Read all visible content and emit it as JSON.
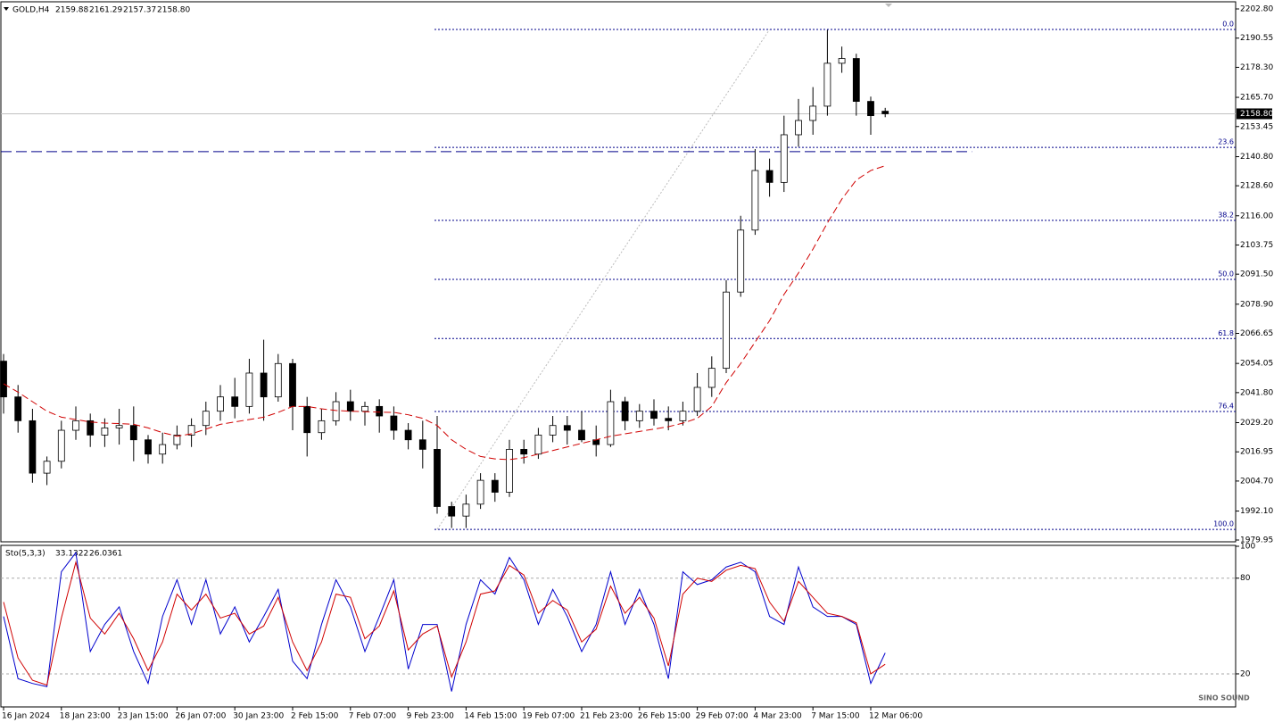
{
  "chart_data": {
    "type": "candlestick",
    "symbol": "GOLD,H4",
    "last_value_labels": [
      "2159.88",
      "2161.29",
      "2157.37",
      "2158.80"
    ],
    "categories": [
      "16 Jan 2024",
      null,
      null,
      null,
      "18 Jan 23:00",
      null,
      null,
      null,
      "23 Jan 15:00",
      null,
      null,
      null,
      "26 Jan 07:00",
      null,
      null,
      null,
      "30 Jan 23:00",
      null,
      null,
      null,
      "2 Feb 15:00",
      null,
      null,
      null,
      "7 Feb 07:00",
      null,
      null,
      null,
      "9 Feb 23:00",
      null,
      null,
      null,
      "14 Feb 15:00",
      null,
      null,
      null,
      "19 Feb 07:00",
      null,
      null,
      null,
      "21 Feb 23:00",
      null,
      null,
      null,
      "26 Feb 15:00",
      null,
      null,
      null,
      "29 Feb 07:00",
      null,
      null,
      null,
      "4 Mar 23:00",
      null,
      null,
      null,
      "7 Mar 15:00",
      null,
      null,
      null,
      "12 Mar 06:00",
      null
    ],
    "ohlc": [
      [
        2055,
        2058,
        2033,
        2040
      ],
      [
        2040,
        2045,
        2025,
        2030
      ],
      [
        2030,
        2035,
        2004,
        2008
      ],
      [
        2008,
        2015,
        2003,
        2013
      ],
      [
        2013,
        2030,
        2010,
        2026
      ],
      [
        2026,
        2036,
        2022,
        2030
      ],
      [
        2030,
        2033,
        2019,
        2024
      ],
      [
        2024,
        2031,
        2019,
        2027
      ],
      [
        2027,
        2035,
        2020,
        2028
      ],
      [
        2028,
        2036,
        2013,
        2022
      ],
      [
        2022,
        2024,
        2012,
        2016
      ],
      [
        2016,
        2025,
        2012,
        2020
      ],
      [
        2020,
        2028,
        2018,
        2024
      ],
      [
        2024,
        2031,
        2019,
        2028
      ],
      [
        2028,
        2038,
        2024,
        2034
      ],
      [
        2034,
        2045,
        2030,
        2040
      ],
      [
        2040,
        2048,
        2031,
        2036
      ],
      [
        2036,
        2056,
        2033,
        2050
      ],
      [
        2050,
        2064,
        2030,
        2040
      ],
      [
        2040,
        2058,
        2038,
        2054
      ],
      [
        2054,
        2056,
        2026,
        2036
      ],
      [
        2036,
        2040,
        2015,
        2025
      ],
      [
        2025,
        2035,
        2022,
        2030
      ],
      [
        2030,
        2042,
        2028,
        2038
      ],
      [
        2038,
        2043,
        2030,
        2034
      ],
      [
        2034,
        2038,
        2028,
        2036
      ],
      [
        2036,
        2039,
        2025,
        2032
      ],
      [
        2032,
        2036,
        2022,
        2026
      ],
      [
        2026,
        2029,
        2018,
        2022
      ],
      [
        2022,
        2030,
        2010,
        2018
      ],
      [
        2018,
        2032,
        1991,
        1994
      ],
      [
        1994,
        1996,
        1985,
        1990
      ],
      [
        1990,
        1999,
        1985,
        1995
      ],
      [
        1995,
        2008,
        1993,
        2005
      ],
      [
        2005,
        2008,
        1996,
        2000
      ],
      [
        2000,
        2022,
        1998,
        2018
      ],
      [
        2018,
        2022,
        2012,
        2016
      ],
      [
        2016,
        2027,
        2014,
        2024
      ],
      [
        2024,
        2032,
        2021,
        2028
      ],
      [
        2028,
        2032,
        2020,
        2026
      ],
      [
        2026,
        2034,
        2021,
        2022
      ],
      [
        2022,
        2028,
        2015,
        2020
      ],
      [
        2020,
        2043,
        2019,
        2038
      ],
      [
        2038,
        2040,
        2026,
        2030
      ],
      [
        2030,
        2037,
        2027,
        2034
      ],
      [
        2034,
        2039,
        2028,
        2031
      ],
      [
        2031,
        2036,
        2026,
        2030
      ],
      [
        2030,
        2038,
        2028,
        2034
      ],
      [
        2034,
        2050,
        2032,
        2044
      ],
      [
        2044,
        2057,
        2040,
        2052
      ],
      [
        2052,
        2089,
        2050,
        2084
      ],
      [
        2084,
        2116,
        2082,
        2110
      ],
      [
        2110,
        2144,
        2108,
        2135
      ],
      [
        2135,
        2140,
        2124,
        2130
      ],
      [
        2130,
        2158,
        2126,
        2150
      ],
      [
        2150,
        2165,
        2145,
        2156
      ],
      [
        2156,
        2170,
        2150,
        2162
      ],
      [
        2162,
        2194,
        2158,
        2180
      ],
      [
        2180,
        2187,
        2176,
        2182
      ],
      [
        2182,
        2184,
        2158,
        2164
      ],
      [
        2164,
        2166,
        2150,
        2158
      ],
      [
        2159.88,
        2161.29,
        2157.37,
        2158.8
      ]
    ],
    "up_color": "#ffffff",
    "down_color": "#000000",
    "ylim": [
      1979.95,
      2202.8
    ],
    "yticks": [
      {
        "value": 2202.8,
        "label": "2202.80"
      },
      {
        "value": 2190.55,
        "label": "2190.55"
      },
      {
        "value": 2178.3,
        "label": "2178.30"
      },
      {
        "value": 2165.7,
        "label": "2165.70"
      },
      {
        "value": 2153.45,
        "label": "2153.45"
      },
      {
        "value": 2140.8,
        "label": "2140.80"
      },
      {
        "value": 2128.6,
        "label": "2128.60"
      },
      {
        "value": 2116,
        "label": "2116.00"
      },
      {
        "value": 2103.75,
        "label": "2103.75"
      },
      {
        "value": 2091.5,
        "label": "2091.50"
      },
      {
        "value": 2078.9,
        "label": "2078.90"
      },
      {
        "value": 2066.65,
        "label": "2066.65"
      },
      {
        "value": 2054.05,
        "label": "2054.05"
      },
      {
        "value": 2041.8,
        "label": "2041.80"
      },
      {
        "value": 2029.2,
        "label": "2029.20"
      },
      {
        "value": 2016.95,
        "label": "2016.95"
      },
      {
        "value": 2004.7,
        "label": "2004.70"
      },
      {
        "value": 1992.1,
        "label": "1992.10"
      },
      {
        "value": 1979.95,
        "label": "1979.95"
      }
    ],
    "last_price": {
      "value": 2158.8,
      "label": "2158.80"
    },
    "ma": {
      "color": "#d00000",
      "values": [
        2045.5,
        2042,
        2038,
        2034,
        2031.5,
        2030.5,
        2029.5,
        2029,
        2028.8,
        2028.5,
        2027,
        2025,
        2023.5,
        2024.5,
        2026.5,
        2028.5,
        2029.5,
        2030.5,
        2031.5,
        2033.5,
        2036,
        2036,
        2035,
        2034.3,
        2034,
        2033.8,
        2033.6,
        2033.5,
        2032.5,
        2031,
        2028,
        2022,
        2018,
        2015,
        2014,
        2013.7,
        2014.5,
        2016,
        2017.5,
        2019,
        2020.5,
        2022,
        2023.5,
        2024.5,
        2025.5,
        2026.5,
        2027.5,
        2029,
        2031,
        2036,
        2046,
        2054,
        2063,
        2072,
        2083,
        2092,
        2102,
        2113,
        2123,
        2131,
        2135,
        2137
      ]
    },
    "hline": {
      "value": 2142.9,
      "color": "#00008b"
    },
    "fib": {
      "color": "#00008b",
      "levels": [
        {
          "label": "0.0",
          "value": 2194.2
        },
        {
          "label": "23.6",
          "value": 2144.7
        },
        {
          "label": "38.2",
          "value": 2114.1
        },
        {
          "label": "50.0",
          "value": 2089.3
        },
        {
          "label": "61.8",
          "value": 2064.5
        },
        {
          "label": "76.4",
          "value": 2033.9
        },
        {
          "label": "100.0",
          "value": 1984.4
        }
      ]
    },
    "stochastic": {
      "title": "Sto(5,3,3)",
      "ylim": [
        0,
        100
      ],
      "yticks": [
        20,
        80,
        100
      ],
      "levels": [
        20,
        80
      ],
      "series": [
        {
          "color": "#0000cd",
          "values": [
            56,
            17,
            14,
            12,
            84,
            96,
            34,
            51,
            62,
            34,
            14,
            56,
            79,
            51,
            79,
            45,
            62,
            40,
            56,
            73,
            28,
            17,
            51,
            79,
            62,
            34,
            56,
            79,
            23,
            51,
            51,
            9,
            51,
            79,
            70,
            93,
            79,
            51,
            73,
            56,
            34,
            51,
            84,
            51,
            73,
            51,
            17,
            84,
            76,
            79,
            87,
            90,
            84,
            56,
            51,
            87,
            62,
            56,
            56,
            51,
            14,
            33.1322
          ]
        },
        {
          "color": "#d00000",
          "values": [
            65,
            30,
            16,
            13,
            55,
            90,
            55,
            45,
            58,
            42,
            22,
            40,
            70,
            60,
            70,
            55,
            58,
            45,
            50,
            68,
            40,
            22,
            40,
            70,
            68,
            42,
            50,
            72,
            35,
            45,
            50,
            18,
            40,
            70,
            72,
            88,
            82,
            58,
            66,
            60,
            40,
            48,
            75,
            58,
            68,
            55,
            25,
            70,
            80,
            78,
            85,
            88,
            86,
            65,
            53,
            78,
            68,
            58,
            56,
            52,
            20,
            26.0361
          ]
        }
      ]
    },
    "watermark": "SINO SOUND"
  }
}
